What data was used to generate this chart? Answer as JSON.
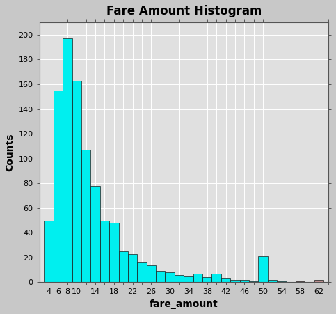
{
  "title": "Fare Amount Histogram",
  "xlabel": "fare_amount",
  "ylabel": "Counts",
  "bar_color": "#00EFEF",
  "bar_edge_color": "#1a1a1a",
  "outer_bg_color": "#c8c8c8",
  "plot_bg_color": "#e0e0e0",
  "ylim": [
    0,
    210
  ],
  "yticks": [
    0,
    20,
    40,
    60,
    80,
    100,
    120,
    140,
    160,
    180,
    200
  ],
  "xtick_labels": [
    4,
    6,
    8,
    10,
    14,
    18,
    22,
    26,
    30,
    34,
    38,
    42,
    46,
    50,
    54,
    58,
    62
  ],
  "xlim": [
    2,
    64
  ],
  "bin_edges": [
    3,
    5,
    7,
    9,
    11,
    13,
    15,
    17,
    19,
    21,
    23,
    25,
    27,
    29,
    31,
    33,
    35,
    37,
    39,
    41,
    43,
    45,
    47,
    49,
    51,
    53,
    55,
    57,
    59,
    61,
    63
  ],
  "counts": [
    50,
    155,
    197,
    163,
    107,
    78,
    50,
    48,
    25,
    23,
    16,
    14,
    9,
    8,
    6,
    5,
    7,
    4,
    7,
    3,
    2,
    2,
    1,
    21,
    2,
    1,
    0,
    1,
    0,
    2
  ],
  "special_bar_color": "#c09090",
  "special_bar_indices": [
    26,
    27,
    28,
    29
  ]
}
